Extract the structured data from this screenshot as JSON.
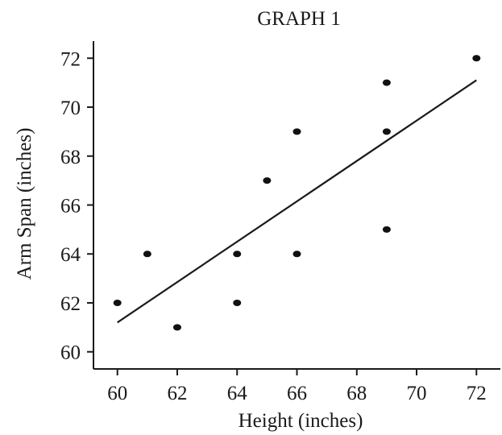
{
  "chart_data": {
    "type": "scatter",
    "title": "GRAPH 1",
    "xlabel": "Height (inches)",
    "ylabel": "Arm Span (inches)",
    "xlim": [
      59.2,
      72.8
    ],
    "ylim": [
      59.3,
      72.7
    ],
    "xticks": [
      60,
      62,
      64,
      66,
      68,
      70,
      72
    ],
    "yticks": [
      60,
      62,
      64,
      66,
      68,
      70,
      72
    ],
    "grid": false,
    "series": [
      {
        "points": [
          {
            "x": 60,
            "y": 62
          },
          {
            "x": 61,
            "y": 64
          },
          {
            "x": 62,
            "y": 61
          },
          {
            "x": 64,
            "y": 64
          },
          {
            "x": 64,
            "y": 62
          },
          {
            "x": 65,
            "y": 67
          },
          {
            "x": 66,
            "y": 69
          },
          {
            "x": 66,
            "y": 64
          },
          {
            "x": 69,
            "y": 71
          },
          {
            "x": 69,
            "y": 69
          },
          {
            "x": 69,
            "y": 65
          },
          {
            "x": 72,
            "y": 72
          }
        ]
      }
    ],
    "fit_line": {
      "x": [
        60,
        72
      ],
      "y": [
        61.2,
        71.1
      ]
    }
  }
}
